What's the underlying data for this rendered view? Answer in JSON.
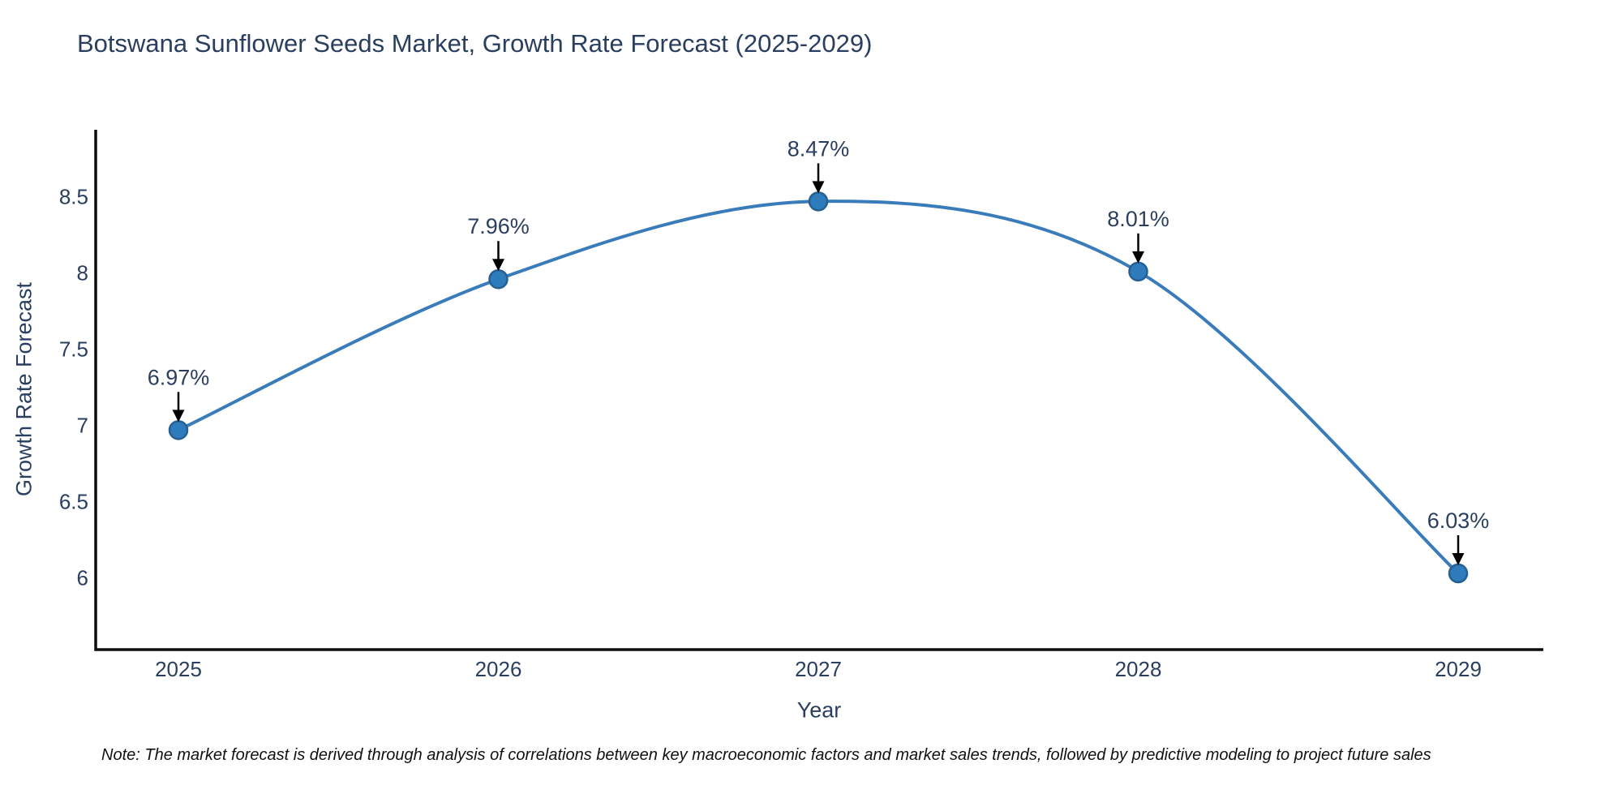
{
  "title": "Botswana Sunflower Seeds Market, Growth Rate Forecast (2025-2029)",
  "chart_data": {
    "type": "line",
    "categories": [
      "2025",
      "2026",
      "2027",
      "2028",
      "2029"
    ],
    "values": [
      6.97,
      7.96,
      8.47,
      8.01,
      6.03
    ],
    "point_labels": [
      "6.97%",
      "7.96%",
      "8.47%",
      "8.01%",
      "6.03%"
    ],
    "title": "Botswana Sunflower Seeds Market, Growth Rate Forecast (2025-2029)",
    "xlabel": "Year",
    "ylabel": "Growth Rate Forecast",
    "yticks": [
      6,
      6.5,
      7,
      7.5,
      8,
      8.5
    ],
    "ylim": [
      5.53,
      8.94
    ],
    "grid": false,
    "legend": false,
    "line_shape": "spline",
    "line_color": "#3a7cba",
    "marker_color": "#2e7cbb",
    "marker_edge_color": "#265f92",
    "annotation_color": "#2a3f5f",
    "annotation_arrow_color": "#000000",
    "axis_color": "#0d0d0d",
    "tick_color": "#2a3f5f"
  },
  "note": "Note: The market forecast is derived through analysis of correlations between key macroeconomic factors and market sales trends, followed by predictive modeling to project future sales",
  "colors": {
    "background": "#ffffff",
    "title_text": "#2a3f5f",
    "note_text": "#111111"
  }
}
